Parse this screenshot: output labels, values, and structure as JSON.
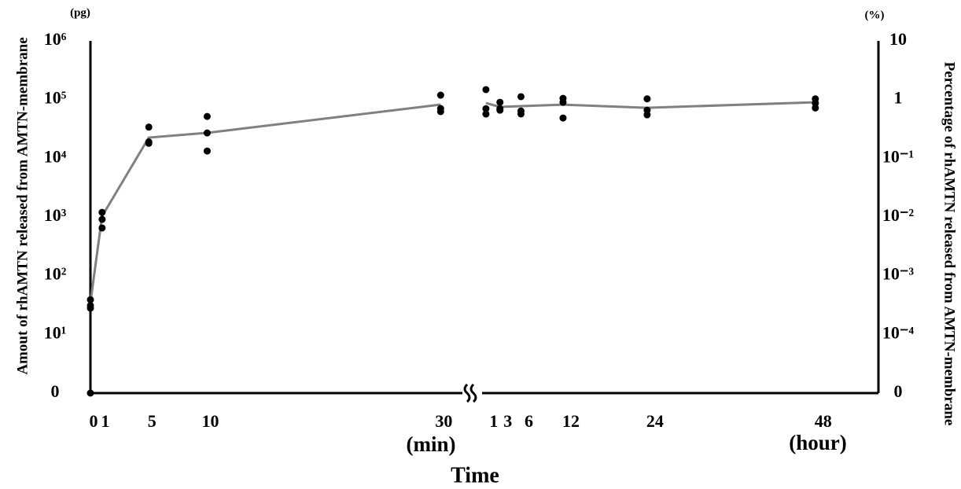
{
  "chart_data": {
    "type": "scatter",
    "log_scale": true,
    "y_label": "Amout of rhAMTN released from AMTN-membrane",
    "y_unit": "(pg)",
    "y2_label": "Percentage of rhAMTN released from AMTN-membrane",
    "y2_unit": "(%)",
    "x_label": "Time",
    "ylim": [
      0,
      1000000
    ],
    "yticks": [
      {
        "value": 0,
        "label": "0"
      },
      {
        "value": 10,
        "label": "10¹"
      },
      {
        "value": 100,
        "label": "10²"
      },
      {
        "value": 1000,
        "label": "10³"
      },
      {
        "value": 10000,
        "label": "10⁴"
      },
      {
        "value": 100000,
        "label": "10⁵"
      },
      {
        "value": 1000000,
        "label": "10⁶"
      }
    ],
    "y2lim": [
      0,
      10
    ],
    "y2ticks": [
      0,
      {
        "value": 0.0001,
        "label": "10⁻⁴"
      },
      {
        "value": 0.001,
        "label": "10⁻³"
      },
      {
        "value": 0.01,
        "label": "10⁻²"
      },
      {
        "value": 0.1,
        "label": "10⁻¹"
      },
      1,
      10
    ],
    "point_color": "#000000",
    "line_color": "#808080",
    "panels": [
      {
        "unit_label": "(min)",
        "xlim": [
          0,
          32
        ],
        "xticks": [
          0,
          1,
          5,
          10,
          30
        ],
        "points": {
          "x": [
            0,
            0,
            0,
            0,
            1,
            1,
            1,
            5,
            5,
            5,
            10,
            10,
            10,
            30,
            30,
            30
          ],
          "y": [
            0,
            28,
            31,
            39,
            1200,
            910,
            650,
            34000,
            19000,
            18000,
            51600,
            27000,
            13300,
            119000,
            70500,
            62400
          ]
        },
        "mean": {
          "x": [
            0,
            1,
            5,
            10,
            30
          ],
          "y": [
            35,
            1030,
            22500,
            27100,
            82200
          ]
        }
      },
      {
        "unit_label": "(hour)",
        "xlim": [
          0,
          57
        ],
        "xticks": [
          1,
          3,
          6,
          12,
          24,
          48
        ],
        "points": {
          "x": [
            1,
            1,
            1,
            3,
            3,
            3,
            6,
            6,
            6,
            12,
            12,
            12,
            24,
            24,
            24,
            48,
            48,
            48
          ],
          "y": [
            148000,
            70000,
            56800,
            90000,
            70000,
            66000,
            112000,
            64000,
            57000,
            105000,
            90000,
            48600,
            103000,
            66000,
            55000,
            103000,
            87000,
            72000
          ]
        },
        "mean": {
          "x": [
            1,
            3,
            6,
            12,
            24,
            48
          ],
          "y": [
            87300,
            75000,
            77300,
            82000,
            72600,
            90000
          ]
        }
      }
    ]
  }
}
